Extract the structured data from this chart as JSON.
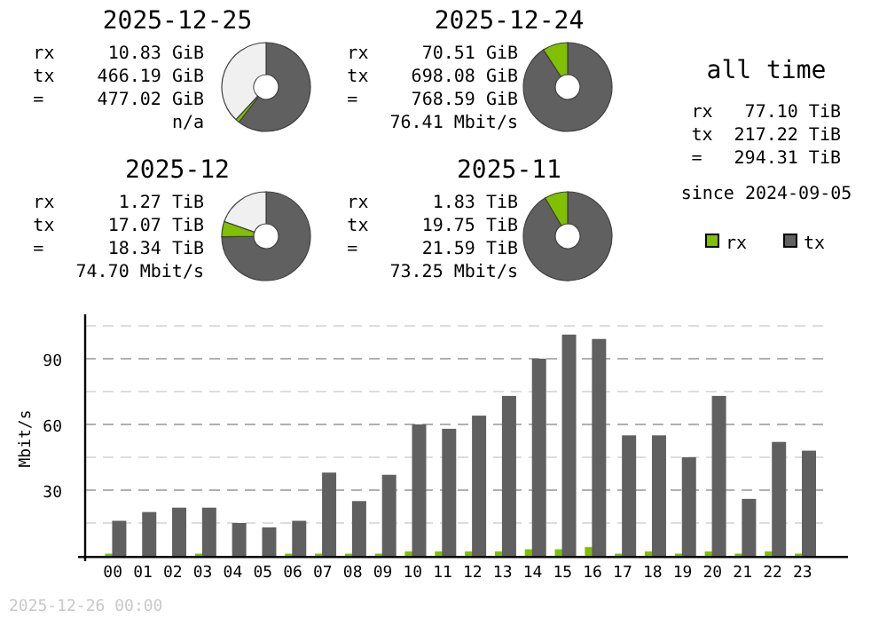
{
  "chart_data": [
    {
      "type": "donut",
      "title": "2025-12-25",
      "categories": [
        null,
        null,
        null
      ],
      "values": [
        60.5,
        1.4,
        38.1
      ],
      "colors": [
        "#606060",
        "#80c000",
        "#f0f0f0"
      ],
      "annotations": [
        "rx     10.83 GiB",
        "tx    466.19 GiB",
        "=     477.02 GiB",
        "n/a"
      ]
    },
    {
      "type": "donut",
      "title": "2025-12-24",
      "categories": [
        null,
        null
      ],
      "values": [
        90.8,
        9.2
      ],
      "colors": [
        "#606060",
        "#80c000"
      ],
      "annotations": [
        "rx     70.51 GiB",
        "tx    698.08 GiB",
        "=     768.59 GiB",
        "76.41 Mbit/s"
      ]
    },
    {
      "type": "other",
      "title": "all time",
      "annotations": [
        "rx   77.10 TiB",
        "tx  217.22 TiB",
        "=   294.31 TiB",
        "since 2024-09-05"
      ]
    },
    {
      "type": "donut",
      "title": "2025-12",
      "categories": [
        null,
        null,
        null
      ],
      "values": [
        74.8,
        5.6,
        19.6
      ],
      "colors": [
        "#606060",
        "#80c000",
        "#f0f0f0"
      ],
      "annotations": [
        "rx      1.27 TiB",
        "tx     17.07 TiB",
        "=      18.34 TiB",
        "74.70 Mbit/s"
      ]
    },
    {
      "type": "donut",
      "title": "2025-11",
      "categories": [
        null,
        null
      ],
      "values": [
        91.5,
        8.5
      ],
      "colors": [
        "#606060",
        "#80c000"
      ],
      "annotations": [
        "rx      1.83 TiB",
        "tx     19.75 TiB",
        "=      21.59 TiB",
        "73.25 Mbit/s"
      ]
    },
    {
      "type": "bar",
      "ylabel": "Mbit/s",
      "legend": "top right",
      "grid": "y",
      "categories": [
        "00",
        "01",
        "02",
        "03",
        "04",
        "05",
        "06",
        "07",
        "08",
        "09",
        "10",
        "11",
        "12",
        "13",
        "14",
        "15",
        "16",
        "17",
        "18",
        "19",
        "20",
        "21",
        "22",
        "23"
      ],
      "series": [
        {
          "name": "rx",
          "color": "#80c000",
          "values": [
            1,
            0,
            0,
            1,
            0,
            0,
            1,
            1,
            1,
            1,
            2,
            2,
            2,
            2,
            3,
            3,
            4,
            1,
            2,
            1,
            2,
            1,
            2,
            1
          ]
        },
        {
          "name": "tx",
          "color": "#606060",
          "values": [
            16,
            20,
            22,
            22,
            15,
            13,
            16,
            38,
            25,
            37,
            60,
            58,
            64,
            73,
            90,
            101,
            99,
            55,
            55,
            45,
            73,
            26,
            52,
            48
          ]
        }
      ],
      "ylim": [
        0,
        107
      ],
      "yticks": [
        {
          "value": 15,
          "label": null
        },
        30,
        {
          "value": 45,
          "label": null
        },
        60,
        {
          "value": 75,
          "label": null
        },
        90,
        {
          "value": 105,
          "label": null
        }
      ],
      "annotations": [
        "2025-12-26 00:00"
      ]
    }
  ]
}
